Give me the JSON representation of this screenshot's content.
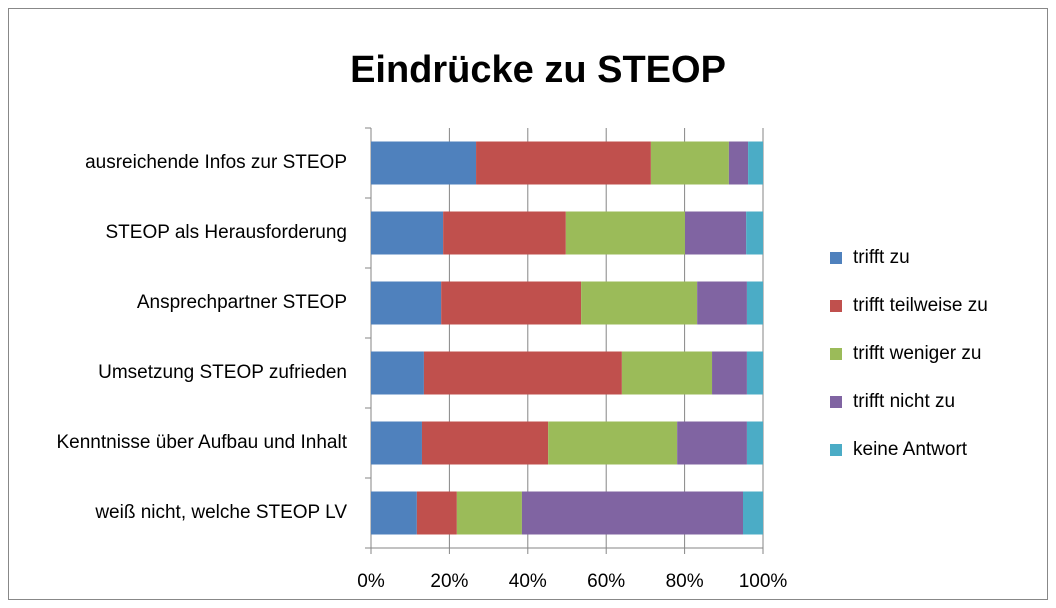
{
  "chart_data": {
    "type": "stacked_barh",
    "title": "Eindrücke zu STEOP",
    "categories": [
      "ausreichende Infos zur STEOP",
      "STEOP als Herausforderung",
      "Ansprechpartner STEOP",
      "Umsetzung STEOP zufrieden",
      "Kenntnisse über Aufbau und Inhalt",
      "weiß nicht, welche STEOP LV"
    ],
    "series": [
      {
        "name": "trifft zu",
        "color": "#4f81bd",
        "values": [
          26.8,
          18.4,
          17.9,
          13.5,
          13.0,
          11.7
        ]
      },
      {
        "name": "trifft teilweise zu",
        "color": "#c0504d",
        "values": [
          44.6,
          31.3,
          35.7,
          50.5,
          32.2,
          10.2
        ]
      },
      {
        "name": "trifft weniger zu",
        "color": "#9bbb59",
        "values": [
          19.9,
          30.4,
          29.6,
          23.0,
          32.9,
          16.6
        ]
      },
      {
        "name": "trifft nicht zu",
        "color": "#8064a2",
        "values": [
          4.9,
          15.6,
          12.7,
          8.9,
          17.8,
          56.4
        ]
      },
      {
        "name": "keine Antwort",
        "color": "#4bacc6",
        "values": [
          3.8,
          4.3,
          4.1,
          4.1,
          4.1,
          5.1
        ]
      }
    ],
    "xlim": [
      0,
      100
    ],
    "xticks": [
      {
        "value": 0,
        "label": "0%"
      },
      {
        "value": 20,
        "label": "20%"
      },
      {
        "value": 40,
        "label": "40%"
      },
      {
        "value": 60,
        "label": "60%"
      },
      {
        "value": 80,
        "label": "80%"
      },
      {
        "value": 100,
        "label": "100%"
      }
    ],
    "grid": true,
    "legend": "right"
  }
}
